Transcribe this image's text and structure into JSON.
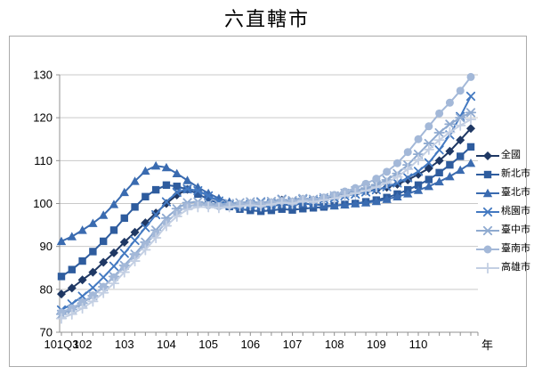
{
  "title": "六直轄市",
  "axis": {
    "x_label": "年",
    "y_ticks": [
      70,
      80,
      90,
      100,
      110,
      120,
      130
    ],
    "x_year_labels": [
      "101Q3",
      "102",
      "103",
      "104",
      "105",
      "106",
      "107",
      "108",
      "109",
      "110"
    ],
    "x_year_label_indices": [
      0,
      2,
      6,
      10,
      14,
      18,
      22,
      26,
      30,
      34
    ]
  },
  "chart_data": {
    "type": "line",
    "title": "六直轄市",
    "xlabel": "年",
    "ylabel": "",
    "ylim": [
      70,
      130
    ],
    "grid": "horizontal",
    "legend_position": "right",
    "x": [
      "101Q3",
      "101Q4",
      "102Q1",
      "102Q2",
      "102Q3",
      "102Q4",
      "103Q1",
      "103Q2",
      "103Q3",
      "103Q4",
      "104Q1",
      "104Q2",
      "104Q3",
      "104Q4",
      "105Q1",
      "105Q2",
      "105Q3",
      "105Q4",
      "106Q1",
      "106Q2",
      "106Q3",
      "106Q4",
      "107Q1",
      "107Q2",
      "107Q3",
      "107Q4",
      "108Q1",
      "108Q2",
      "108Q3",
      "108Q4",
      "109Q1",
      "109Q2",
      "109Q3",
      "109Q4",
      "110Q1",
      "110Q2",
      "110Q3",
      "110Q4",
      "111Q1",
      "111Q2"
    ],
    "series": [
      {
        "name": "全國",
        "marker": "diamond",
        "color": "#1F3864",
        "values": [
          78.9,
          80.3,
          82.2,
          84.0,
          86.3,
          88.5,
          91.0,
          93.3,
          95.5,
          97.8,
          100.0,
          102.0,
          103.3,
          103.0,
          101.8,
          100.5,
          100.0,
          99.6,
          100.0,
          99.7,
          100.2,
          100.8,
          100.4,
          101.0,
          100.8,
          101.2,
          101.5,
          102.0,
          102.4,
          102.8,
          103.2,
          103.8,
          104.5,
          105.5,
          106.8,
          108.2,
          110.0,
          112.2,
          114.8,
          117.5
        ]
      },
      {
        "name": "新北市",
        "marker": "square",
        "color": "#2E5C9E",
        "values": [
          83.0,
          84.6,
          86.6,
          88.8,
          91.2,
          93.8,
          96.6,
          99.2,
          101.6,
          103.2,
          104.3,
          104.0,
          103.3,
          102.2,
          101.0,
          100.0,
          99.3,
          98.7,
          98.4,
          98.2,
          98.4,
          98.7,
          98.5,
          98.8,
          99.0,
          99.2,
          99.5,
          99.8,
          100.0,
          100.4,
          100.8,
          101.4,
          102.2,
          103.2,
          104.3,
          105.6,
          107.2,
          109.0,
          111.0,
          113.2
        ]
      },
      {
        "name": "臺北市",
        "marker": "triangle",
        "color": "#3A6BB0",
        "values": [
          91.2,
          92.3,
          93.8,
          95.4,
          97.3,
          99.8,
          102.6,
          105.2,
          107.6,
          108.8,
          108.4,
          107.0,
          105.4,
          103.8,
          102.4,
          101.2,
          100.4,
          99.8,
          99.4,
          99.2,
          99.4,
          99.8,
          99.6,
          100.0,
          99.8,
          99.6,
          99.5,
          99.7,
          100.0,
          100.2,
          100.5,
          101.0,
          101.6,
          102.3,
          103.1,
          104.0,
          105.1,
          106.3,
          107.8,
          109.4
        ]
      },
      {
        "name": "桃園市",
        "marker": "x",
        "color": "#4379C1",
        "values": [
          75.2,
          76.6,
          78.4,
          80.4,
          82.8,
          85.4,
          88.4,
          91.4,
          94.4,
          97.4,
          100.4,
          102.6,
          103.4,
          103.0,
          101.8,
          100.6,
          99.8,
          99.4,
          99.8,
          100.4,
          100.0,
          101.0,
          100.4,
          101.0,
          100.6,
          101.0,
          101.3,
          101.8,
          102.2,
          102.7,
          103.2,
          103.9,
          104.8,
          106.0,
          107.5,
          109.5,
          112.5,
          116.0,
          120.3,
          125.0
        ]
      },
      {
        "name": "臺中市",
        "marker": "star",
        "color": "#8FAAD0",
        "values": [
          74.2,
          75.3,
          76.8,
          78.5,
          80.6,
          83.0,
          85.6,
          88.2,
          91.0,
          93.8,
          96.6,
          98.8,
          100.2,
          100.4,
          100.0,
          99.8,
          100.0,
          100.2,
          100.4,
          100.2,
          100.5,
          100.9,
          100.7,
          101.2,
          101.0,
          101.4,
          101.8,
          102.4,
          103.0,
          103.6,
          104.4,
          105.5,
          107.0,
          109.0,
          111.5,
          114.0,
          116.5,
          118.5,
          120.0,
          121.2
        ]
      },
      {
        "name": "臺南市",
        "marker": "circle",
        "color": "#A3B8D8",
        "values": [
          74.6,
          75.6,
          77.0,
          78.6,
          80.6,
          82.8,
          85.2,
          87.8,
          90.4,
          93.0,
          95.6,
          97.8,
          99.4,
          99.8,
          99.6,
          99.4,
          99.6,
          99.8,
          100.0,
          99.8,
          100.2,
          100.6,
          100.4,
          101.0,
          100.8,
          101.4,
          102.0,
          102.8,
          103.6,
          104.6,
          105.8,
          107.4,
          109.4,
          112.0,
          115.0,
          118.0,
          121.0,
          123.5,
          126.3,
          129.5
        ]
      },
      {
        "name": "高雄市",
        "marker": "plus",
        "color": "#C3CFE3",
        "values": [
          73.2,
          74.2,
          75.6,
          77.2,
          79.2,
          81.4,
          84.0,
          86.6,
          89.2,
          92.0,
          94.8,
          97.0,
          98.6,
          99.2,
          99.2,
          99.0,
          99.2,
          99.4,
          99.6,
          99.4,
          99.8,
          100.2,
          100.0,
          100.6,
          100.4,
          100.8,
          101.2,
          101.8,
          102.4,
          103.0,
          103.8,
          104.8,
          106.2,
          108.0,
          110.2,
          112.6,
          114.8,
          116.6,
          118.2,
          119.6
        ]
      }
    ]
  },
  "colors": {
    "gridline": "#C9C9C9",
    "axis": "#909090",
    "border": "#ABABAB",
    "text": "#000000"
  }
}
